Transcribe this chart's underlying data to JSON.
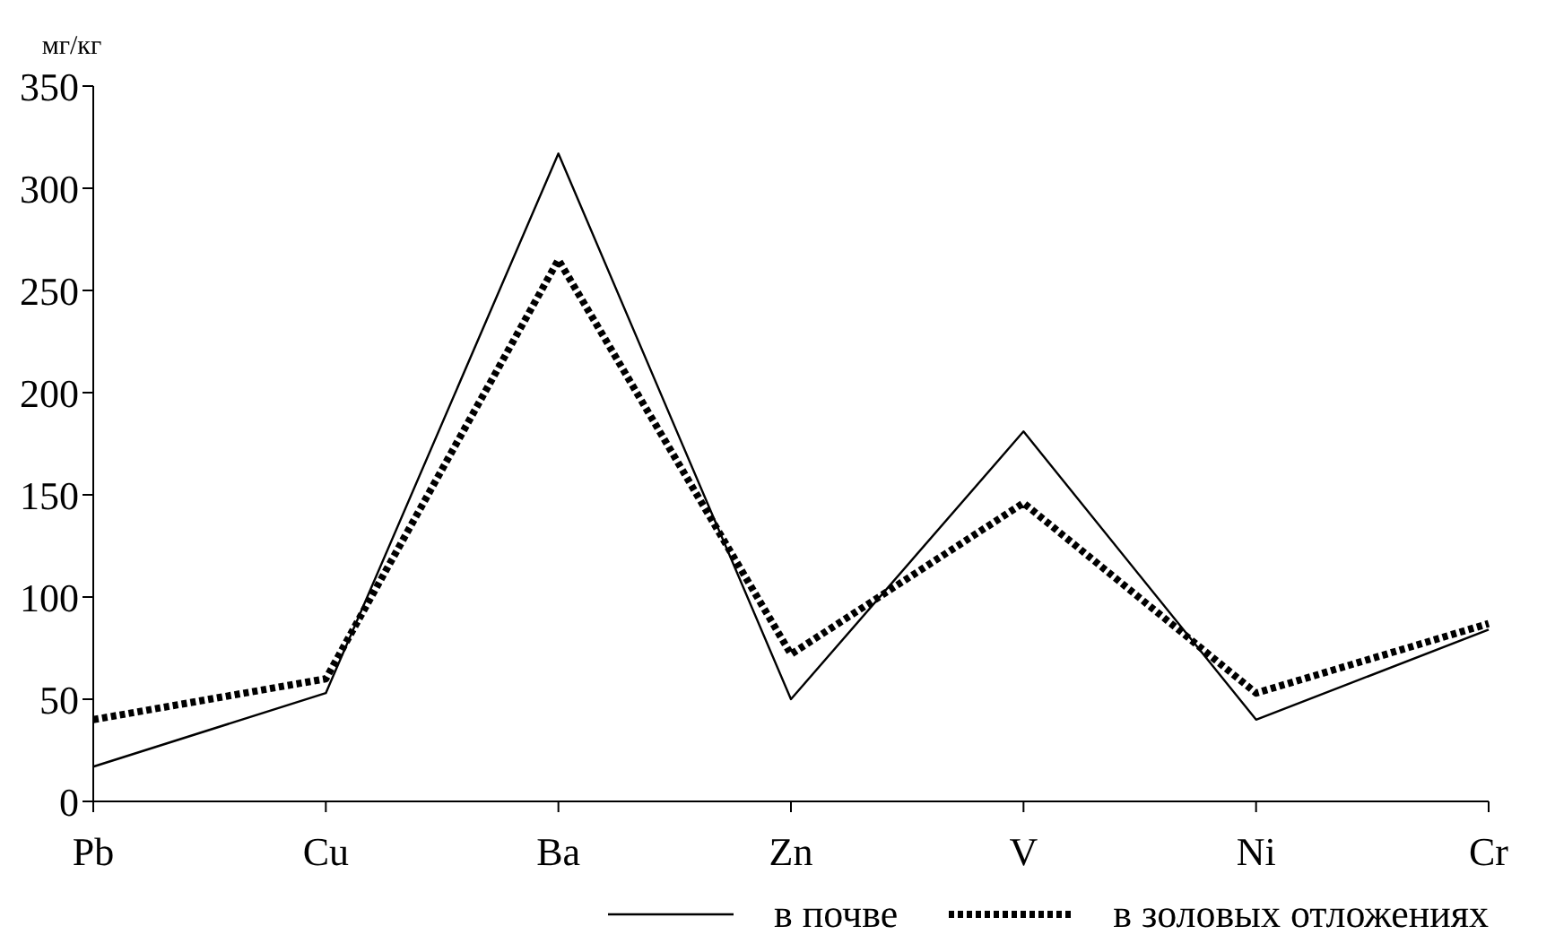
{
  "chart_data": {
    "type": "line",
    "ylabel": "мг/кг",
    "categories": [
      "Pb",
      "Cu",
      "Ba",
      "Zn",
      "V",
      "Ni",
      "Cr"
    ],
    "series": [
      {
        "name": "в почве",
        "color": "#000000",
        "line_style": "solid",
        "values": [
          17,
          53,
          317,
          50,
          181,
          40,
          84
        ]
      },
      {
        "name": "в золовых отложениях",
        "color": "#000000",
        "line_style": "dotted",
        "values": [
          40,
          60,
          265,
          72,
          146,
          53,
          87
        ]
      }
    ],
    "ylim": [
      0,
      350
    ],
    "yticks": [
      0,
      50,
      100,
      150,
      200,
      250,
      300,
      350
    ],
    "grid": false,
    "legend": "bottom",
    "marker": "none"
  }
}
